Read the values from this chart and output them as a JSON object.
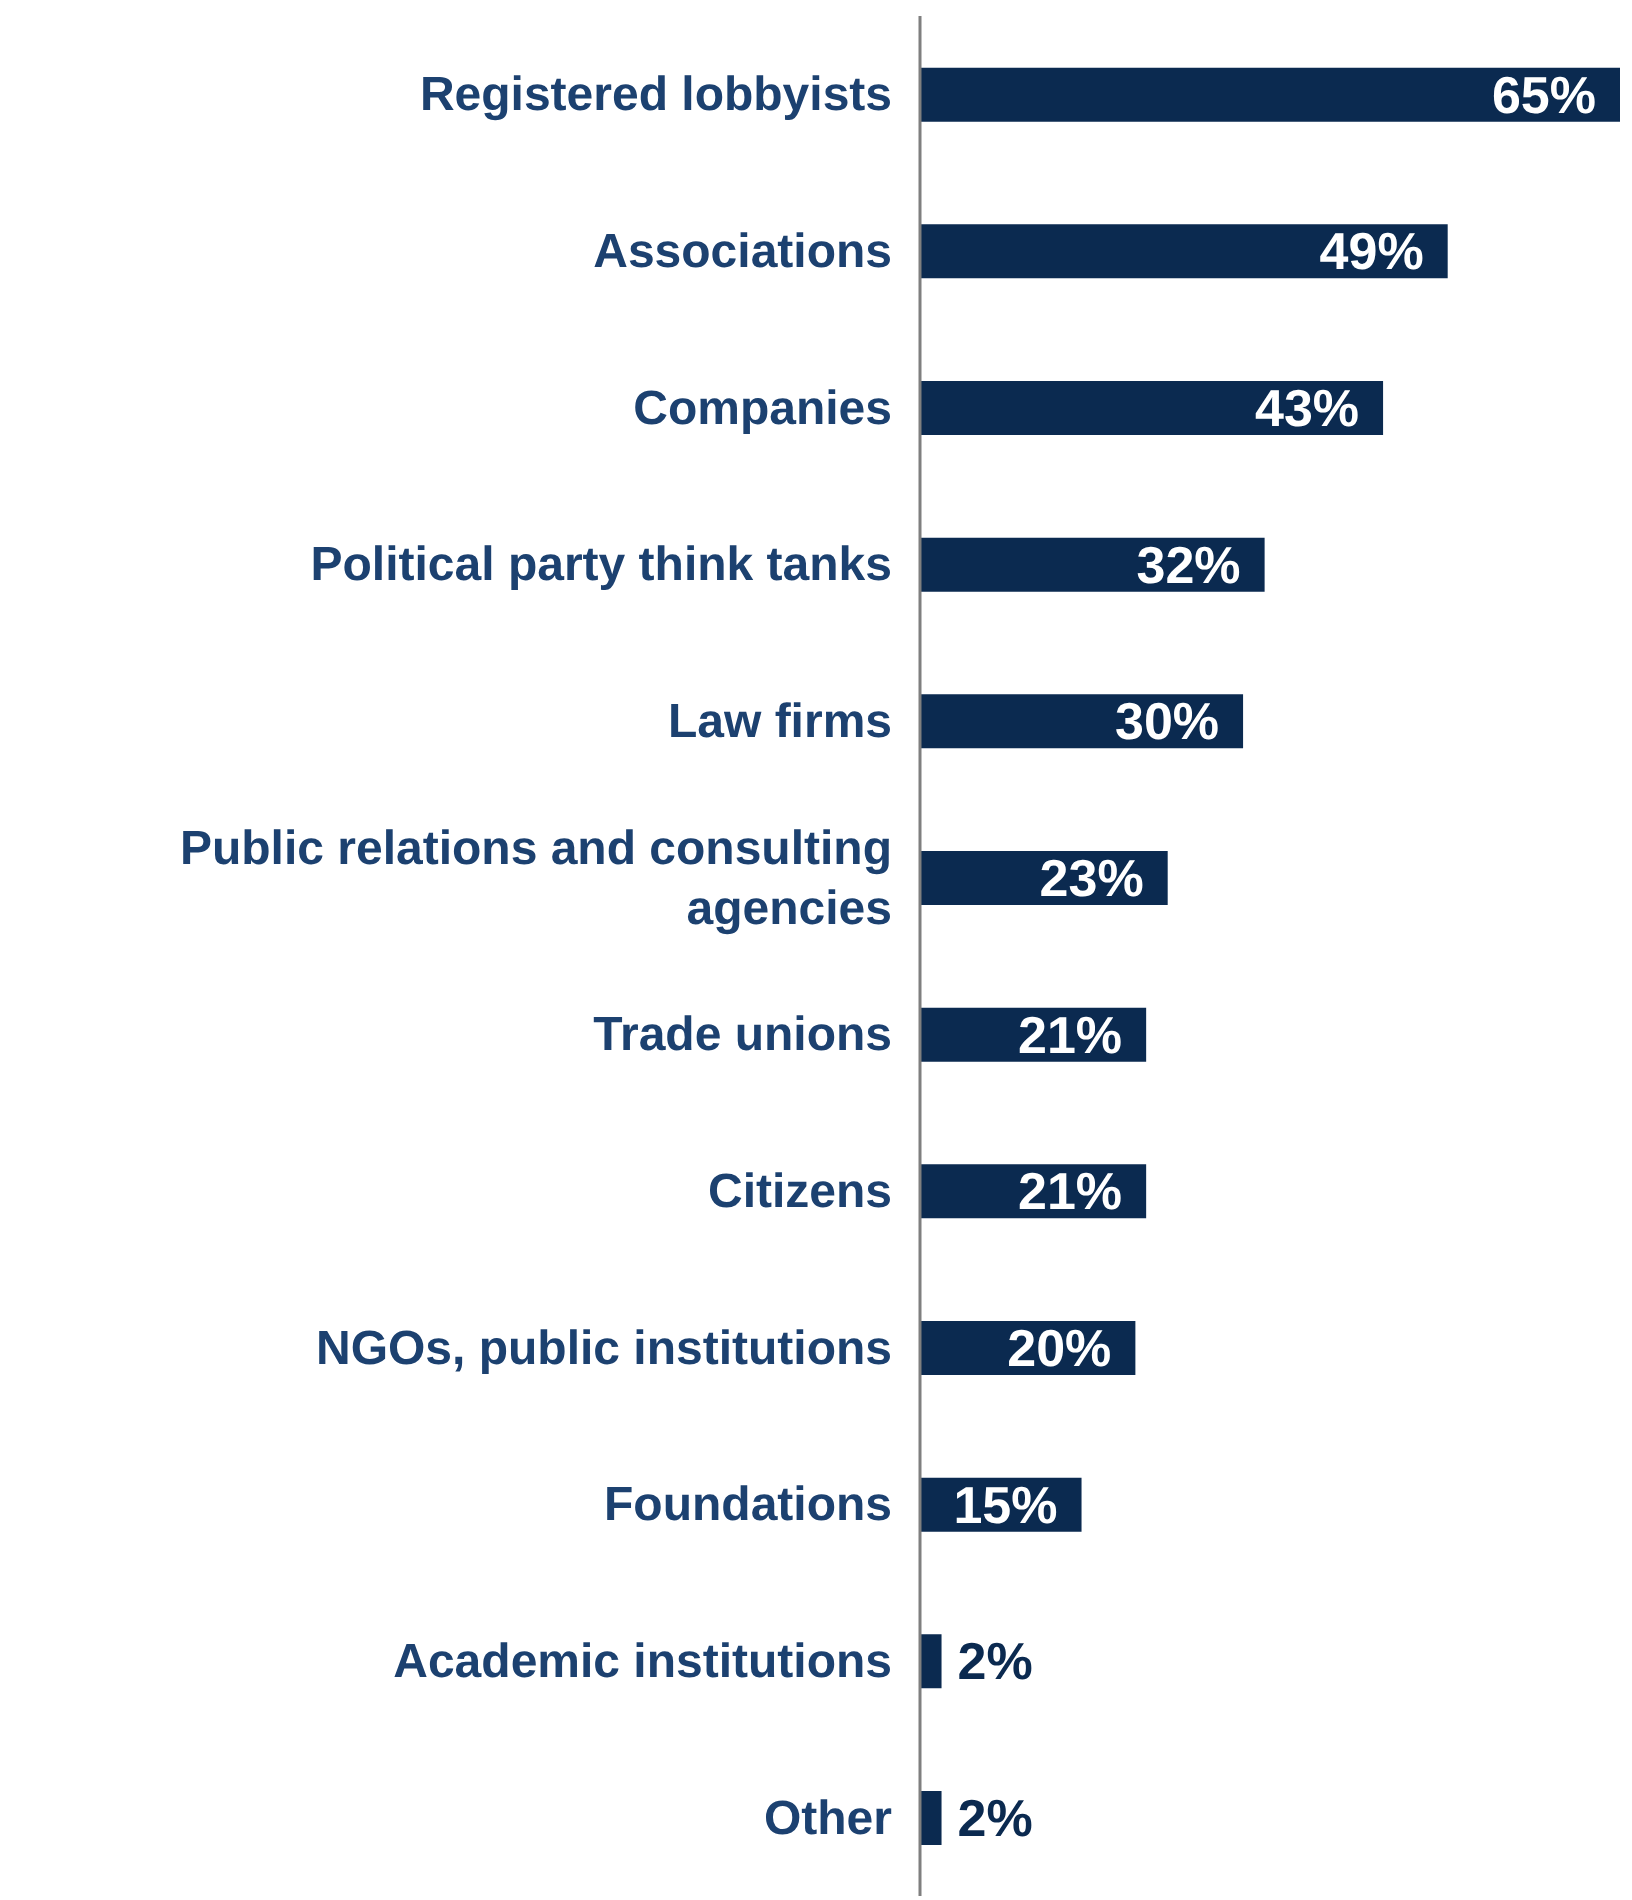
{
  "chart_data": {
    "type": "bar",
    "orientation": "horizontal",
    "categories": [
      "Registered lobbyists",
      "Associations",
      "Companies",
      "Political party think tanks",
      "Law firms",
      "Public relations and consulting agencies",
      "Trade unions",
      "Citizens",
      "NGOs, public institutions",
      "Foundations",
      "Academic institutions",
      "Other"
    ],
    "values": [
      65,
      49,
      43,
      32,
      30,
      23,
      21,
      21,
      20,
      15,
      2,
      2
    ],
    "value_labels": [
      "65%",
      "49%",
      "43%",
      "32%",
      "30%",
      "23%",
      "21%",
      "21%",
      "20%",
      "15%",
      "2%",
      "2%"
    ],
    "color": "#0b2a50"
  }
}
